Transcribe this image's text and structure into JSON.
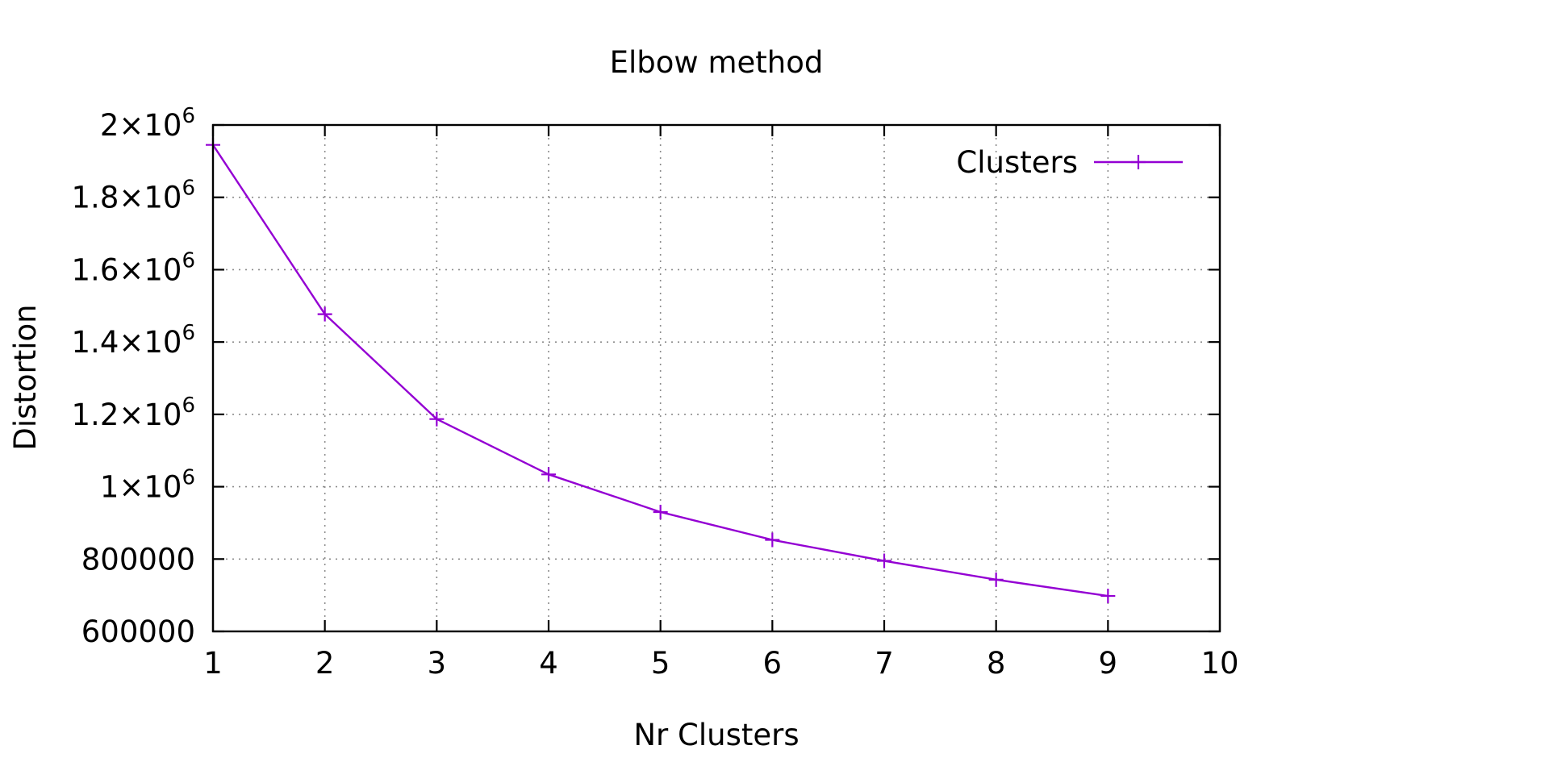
{
  "chart_data": {
    "type": "line",
    "title": "Elbow method",
    "xlabel": "Nr Clusters",
    "ylabel": "Distortion",
    "xlim": [
      1,
      10
    ],
    "ylim": [
      600000,
      2000000
    ],
    "x_ticks": [
      1,
      2,
      3,
      4,
      5,
      6,
      7,
      8,
      9,
      10
    ],
    "x_tick_labels": [
      "1",
      "2",
      "3",
      "4",
      "5",
      "6",
      "7",
      "8",
      "9",
      "10"
    ],
    "y_ticks": [
      600000,
      800000,
      1000000,
      1200000,
      1400000,
      1600000,
      1800000,
      2000000
    ],
    "y_tick_labels": [
      {
        "base": "600000",
        "exp": ""
      },
      {
        "base": "800000",
        "exp": ""
      },
      {
        "base": "1×10",
        "exp": "6"
      },
      {
        "base": "1.2×10",
        "exp": "6"
      },
      {
        "base": "1.4×10",
        "exp": "6"
      },
      {
        "base": "1.6×10",
        "exp": "6"
      },
      {
        "base": "1.8×10",
        "exp": "6"
      },
      {
        "base": "2×10",
        "exp": "6"
      }
    ],
    "grid": true,
    "legend_position": "top-right",
    "series": [
      {
        "name": "Clusters",
        "color": "#9400d3",
        "marker": "plus",
        "x": [
          1,
          2,
          3,
          4,
          5,
          6,
          7,
          8,
          9
        ],
        "y": [
          1945000,
          1477000,
          1187000,
          1034000,
          930000,
          853000,
          795000,
          743000,
          698000
        ]
      }
    ]
  }
}
